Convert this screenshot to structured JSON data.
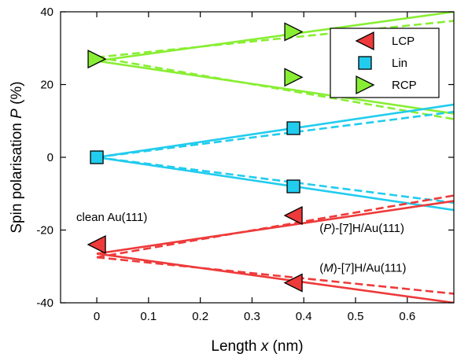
{
  "chart_data": {
    "type": "line",
    "xlabel_text": "Length ",
    "xlabel_var": "x",
    "xlabel_unit": " (nm)",
    "ylabel_text": "Spin polarisation ",
    "ylabel_var": "P",
    "ylabel_unit": " (%)",
    "xlim": [
      -0.07,
      0.69
    ],
    "ylim": [
      -40,
      40
    ],
    "xticks": [
      0,
      0.1,
      0.2,
      0.3,
      0.4,
      0.5,
      0.6
    ],
    "xtick_labels": [
      "0",
      "0.1",
      "0.2",
      "0.3",
      "0.4",
      "0.5",
      "0.6"
    ],
    "yticks": [
      -40,
      -20,
      0,
      20,
      40
    ],
    "ytick_labels": [
      "-40",
      "-20",
      "0",
      "20",
      "40"
    ],
    "colors": {
      "LCP": "#ee3a3a",
      "Lin": "#22ccee",
      "RCP": "#88ee33"
    },
    "legend": {
      "position": "top-right",
      "entries": [
        {
          "label": "LCP",
          "marker": "triangle-left",
          "color": "#ee3a3a"
        },
        {
          "label": "Lin",
          "marker": "square",
          "color": "#22ccee"
        },
        {
          "label": "RCP",
          "marker": "triangle-right",
          "color": "#88ee33"
        }
      ]
    },
    "series": [
      {
        "name": "LCP",
        "marker": "triangle-left",
        "color": "#ee3a3a",
        "x": [
          0,
          0.38,
          0.38
        ],
        "y": [
          -24,
          -16,
          -34.5
        ]
      },
      {
        "name": "Lin",
        "marker": "square",
        "color": "#22ccee",
        "x": [
          0,
          0.38,
          0.38
        ],
        "y": [
          0,
          8,
          -8
        ]
      },
      {
        "name": "RCP",
        "marker": "triangle-right",
        "color": "#88ee33",
        "x": [
          0,
          0.38,
          0.38
        ],
        "y": [
          27,
          34.5,
          22
        ]
      }
    ],
    "fits": [
      {
        "color": "#88ee33",
        "style": "solid",
        "x": [
          0,
          0.69
        ],
        "y": [
          26.5,
          40
        ]
      },
      {
        "color": "#88ee33",
        "style": "dashed",
        "x": [
          0,
          0.69
        ],
        "y": [
          27.5,
          37.5
        ]
      },
      {
        "color": "#88ee33",
        "style": "solid",
        "x": [
          0,
          0.69
        ],
        "y": [
          26.5,
          12
        ]
      },
      {
        "color": "#88ee33",
        "style": "dashed",
        "x": [
          0,
          0.69
        ],
        "y": [
          27.5,
          10.5
        ]
      },
      {
        "color": "#22ccee",
        "style": "solid",
        "x": [
          0,
          0.69
        ],
        "y": [
          0,
          14.5
        ]
      },
      {
        "color": "#22ccee",
        "style": "dashed",
        "x": [
          0,
          0.69
        ],
        "y": [
          0,
          12.5
        ]
      },
      {
        "color": "#22ccee",
        "style": "solid",
        "x": [
          0,
          0.69
        ],
        "y": [
          0,
          -14.5
        ]
      },
      {
        "color": "#22ccee",
        "style": "dashed",
        "x": [
          0,
          0.69
        ],
        "y": [
          0,
          -12.5
        ]
      },
      {
        "color": "#ee3a3a",
        "style": "solid",
        "x": [
          0,
          0.69
        ],
        "y": [
          -26.5,
          -12
        ]
      },
      {
        "color": "#ee3a3a",
        "style": "dashed",
        "x": [
          0,
          0.69
        ],
        "y": [
          -27.5,
          -10.5
        ]
      },
      {
        "color": "#ee3a3a",
        "style": "solid",
        "x": [
          0,
          0.69
        ],
        "y": [
          -26.5,
          -40
        ]
      },
      {
        "color": "#ee3a3a",
        "style": "dashed",
        "x": [
          0,
          0.69
        ],
        "y": [
          -27.5,
          -37.5
        ]
      }
    ],
    "annotations": [
      {
        "text": "clean Au(111)",
        "x": -0.07,
        "y": -17.5
      },
      {
        "prefix": "(",
        "italic": "P",
        "suffix": ")-[7]H/Au(111)",
        "x": 0.4,
        "y": -20.5
      },
      {
        "prefix": "(",
        "italic": "M",
        "suffix": ")-[7]H/Au(111)",
        "x": 0.4,
        "y": -31.5
      }
    ]
  }
}
